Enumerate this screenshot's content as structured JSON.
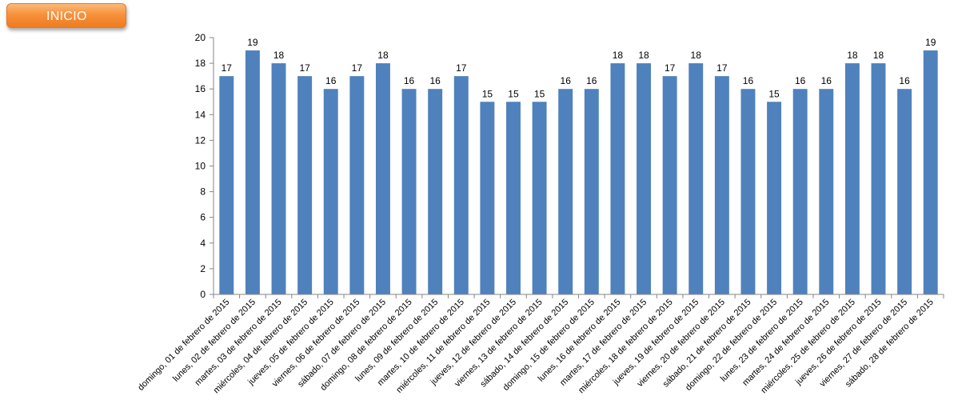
{
  "button": {
    "label": "INICIO"
  },
  "colors": {
    "bar": "#4F81BD",
    "button": "#F7913B"
  },
  "chart_data": {
    "type": "bar",
    "title": "",
    "xlabel": "",
    "ylabel": "",
    "ylim": [
      0,
      20
    ],
    "yticks": [
      0,
      2,
      4,
      6,
      8,
      10,
      12,
      14,
      16,
      18,
      20
    ],
    "grid": false,
    "legend": "none",
    "categories": [
      "domingo, 01 de febrero de 2015",
      "lunes, 02 de febrero de 2015",
      "martes, 03 de febrero de 2015",
      "miércoles, 04 de febrero de 2015",
      "jueves, 05 de febrero de 2015",
      "viernes, 06 de febrero de 2015",
      "sábado, 07 de febrero de 2015",
      "domingo, 08 de febrero de 2015",
      "lunes, 09 de febrero de 2015",
      "martes, 10 de febrero de 2015",
      "miércoles, 11 de febrero de 2015",
      "jueves, 12 de febrero de 2015",
      "viernes, 13 de febrero de 2015",
      "sábado, 14 de febrero de 2015",
      "domingo, 15 de febrero de 2015",
      "lunes, 16 de febrero de 2015",
      "martes, 17 de febrero de 2015",
      "miércoles, 18 de febrero de 2015",
      "jueves, 19 de febrero de 2015",
      "viernes, 20 de febrero de 2015",
      "sábado, 21 de febrero de 2015",
      "domingo, 22 de febrero de 2015",
      "lunes, 23 de febrero de 2015",
      "martes, 24 de febrero de 2015",
      "miércoles, 25 de febrero de 2015",
      "jueves, 26 de febrero de 2015",
      "viernes, 27 de febrero de 2015",
      "sábado, 28 de febrero de 2015"
    ],
    "values": [
      17,
      19,
      18,
      17,
      16,
      17,
      18,
      16,
      16,
      17,
      15,
      15,
      15,
      16,
      16,
      18,
      18,
      17,
      18,
      17,
      16,
      15,
      16,
      16,
      18,
      18,
      16,
      19
    ]
  }
}
